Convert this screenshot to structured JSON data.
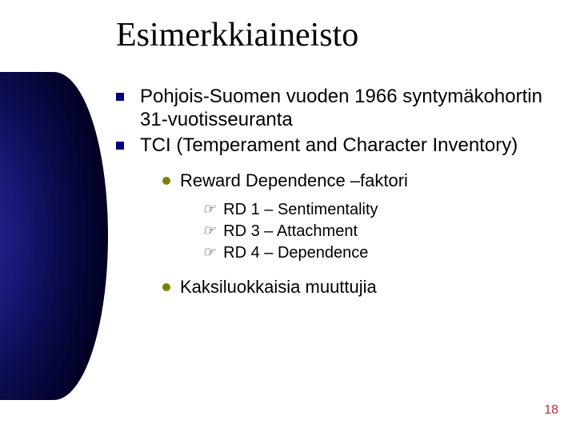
{
  "title": "Esimerkkiaineisto",
  "bullets": {
    "b1": "Pohjois-Suomen vuoden 1966 syntymäkohortin 31-vuotisseuranta",
    "b2": "TCI (Temperament and Character Inventory)"
  },
  "sub1": "Reward Dependence –faktori",
  "rd": {
    "r1": "RD 1 – Sentimentality",
    "r2": "RD 3 –  Attachment",
    "r3": "RD 4 –  Dependence"
  },
  "sub2": "Kaksiluokkaisia muuttujia",
  "page_number": "18"
}
